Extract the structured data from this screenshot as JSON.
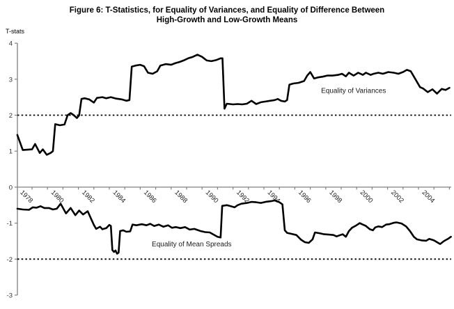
{
  "figure": {
    "title_line1": "Figure 6: T-Statistics, for Equality of Variances, and Equality of Difference Between",
    "title_line2": "High-Growth and Low-Growth Means",
    "y_axis_label": "T-stats"
  },
  "colors": {
    "series_line": "#000000",
    "axis_line": "#808080",
    "tick_text": "#333333",
    "threshold_line": "#000000",
    "annotation_text": "#1a1a1a"
  },
  "chart_data": {
    "type": "line",
    "title": "Figure 6: T-Statistics, for Equality of Variances, and Equality of Difference Between High-Growth and Low-Growth Means",
    "xlabel": "",
    "ylabel": "T-stats",
    "ylim": [
      -3,
      4
    ],
    "xlim": [
      1977.0,
      2005.3
    ],
    "grid": false,
    "legend_position": "inline-annotations",
    "y_ticks": [
      4,
      3,
      2,
      1,
      0,
      -1,
      -2,
      -3
    ],
    "x_ticks_labeled": [
      1978,
      1980,
      1982,
      1984,
      1986,
      1988,
      1990,
      1992,
      1994,
      1996,
      1998,
      2000,
      2002,
      2004
    ],
    "x_tick_step_years": 1,
    "reference_lines": [
      {
        "value": 2,
        "style": "dotted"
      },
      {
        "value": -2,
        "style": "dotted"
      }
    ],
    "annotations": [
      {
        "text": "Equality of Variances",
        "year": 1996.7,
        "value": 2.62
      },
      {
        "text": "Equality of Mean Spreads",
        "year": 1985.75,
        "value": -1.65
      }
    ],
    "series": [
      {
        "name": "Equality of Variances",
        "points": [
          [
            1977.05,
            1.45
          ],
          [
            1977.4,
            1.03
          ],
          [
            1977.7,
            1.04
          ],
          [
            1978.0,
            1.05
          ],
          [
            1978.2,
            1.2
          ],
          [
            1978.5,
            0.95
          ],
          [
            1978.7,
            1.05
          ],
          [
            1978.95,
            0.9
          ],
          [
            1979.2,
            0.95
          ],
          [
            1979.35,
            1.0
          ],
          [
            1979.5,
            1.75
          ],
          [
            1979.8,
            1.72
          ],
          [
            1980.1,
            1.74
          ],
          [
            1980.3,
            2.0
          ],
          [
            1980.5,
            2.06
          ],
          [
            1980.7,
            2.0
          ],
          [
            1980.9,
            1.92
          ],
          [
            1981.05,
            2.0
          ],
          [
            1981.2,
            2.45
          ],
          [
            1981.4,
            2.47
          ],
          [
            1981.7,
            2.44
          ],
          [
            1982.0,
            2.35
          ],
          [
            1982.2,
            2.48
          ],
          [
            1982.55,
            2.5
          ],
          [
            1982.8,
            2.47
          ],
          [
            1983.1,
            2.5
          ],
          [
            1983.45,
            2.46
          ],
          [
            1983.8,
            2.44
          ],
          [
            1984.1,
            2.4
          ],
          [
            1984.3,
            2.42
          ],
          [
            1984.45,
            3.35
          ],
          [
            1984.7,
            3.38
          ],
          [
            1985.0,
            3.4
          ],
          [
            1985.25,
            3.36
          ],
          [
            1985.5,
            3.18
          ],
          [
            1985.8,
            3.15
          ],
          [
            1986.1,
            3.22
          ],
          [
            1986.3,
            3.38
          ],
          [
            1986.65,
            3.42
          ],
          [
            1987.0,
            3.4
          ],
          [
            1987.3,
            3.45
          ],
          [
            1987.55,
            3.48
          ],
          [
            1987.8,
            3.52
          ],
          [
            1988.1,
            3.58
          ],
          [
            1988.4,
            3.62
          ],
          [
            1988.7,
            3.68
          ],
          [
            1989.0,
            3.62
          ],
          [
            1989.3,
            3.52
          ],
          [
            1989.6,
            3.5
          ],
          [
            1989.9,
            3.53
          ],
          [
            1990.2,
            3.58
          ],
          [
            1990.32,
            3.58
          ],
          [
            1990.45,
            2.18
          ],
          [
            1990.6,
            2.32
          ],
          [
            1991.0,
            2.3
          ],
          [
            1991.3,
            2.31
          ],
          [
            1991.6,
            2.3
          ],
          [
            1991.9,
            2.32
          ],
          [
            1992.2,
            2.4
          ],
          [
            1992.5,
            2.31
          ],
          [
            1992.8,
            2.36
          ],
          [
            1993.1,
            2.38
          ],
          [
            1993.4,
            2.4
          ],
          [
            1993.7,
            2.42
          ],
          [
            1993.9,
            2.45
          ],
          [
            1994.1,
            2.4
          ],
          [
            1994.35,
            2.38
          ],
          [
            1994.5,
            2.42
          ],
          [
            1994.65,
            2.85
          ],
          [
            1994.9,
            2.88
          ],
          [
            1995.25,
            2.9
          ],
          [
            1995.6,
            2.95
          ],
          [
            1995.8,
            3.1
          ],
          [
            1996.0,
            3.2
          ],
          [
            1996.25,
            3.02
          ],
          [
            1996.5,
            3.05
          ],
          [
            1996.8,
            3.07
          ],
          [
            1997.1,
            3.1
          ],
          [
            1997.45,
            3.1
          ],
          [
            1997.8,
            3.12
          ],
          [
            1998.05,
            3.15
          ],
          [
            1998.3,
            3.08
          ],
          [
            1998.5,
            3.18
          ],
          [
            1998.8,
            3.1
          ],
          [
            1999.1,
            3.18
          ],
          [
            1999.4,
            3.12
          ],
          [
            1999.6,
            3.18
          ],
          [
            1999.9,
            3.12
          ],
          [
            2000.1,
            3.15
          ],
          [
            2000.4,
            3.18
          ],
          [
            2000.7,
            3.15
          ],
          [
            2001.05,
            3.2
          ],
          [
            2001.4,
            3.18
          ],
          [
            2001.7,
            3.15
          ],
          [
            2002.0,
            3.2
          ],
          [
            2002.25,
            3.26
          ],
          [
            2002.5,
            3.22
          ],
          [
            2002.8,
            3.0
          ],
          [
            2003.1,
            2.78
          ],
          [
            2003.3,
            2.74
          ],
          [
            2003.6,
            2.64
          ],
          [
            2003.9,
            2.72
          ],
          [
            2004.2,
            2.6
          ],
          [
            2004.5,
            2.73
          ],
          [
            2004.75,
            2.7
          ],
          [
            2005.0,
            2.76
          ]
        ]
      },
      {
        "name": "Equality of Mean Spreads",
        "points": [
          [
            1977.05,
            -0.6
          ],
          [
            1977.4,
            -0.62
          ],
          [
            1977.8,
            -0.63
          ],
          [
            1978.05,
            -0.56
          ],
          [
            1978.3,
            -0.57
          ],
          [
            1978.55,
            -0.53
          ],
          [
            1978.8,
            -0.58
          ],
          [
            1979.1,
            -0.58
          ],
          [
            1979.35,
            -0.62
          ],
          [
            1979.6,
            -0.6
          ],
          [
            1979.85,
            -0.46
          ],
          [
            1980.2,
            -0.73
          ],
          [
            1980.5,
            -0.58
          ],
          [
            1980.8,
            -0.78
          ],
          [
            1981.05,
            -0.65
          ],
          [
            1981.3,
            -0.76
          ],
          [
            1981.6,
            -0.67
          ],
          [
            1981.8,
            -0.86
          ],
          [
            1982.0,
            -1.05
          ],
          [
            1982.15,
            -1.16
          ],
          [
            1982.4,
            -1.1
          ],
          [
            1982.55,
            -1.17
          ],
          [
            1982.8,
            -1.14
          ],
          [
            1983.0,
            -1.05
          ],
          [
            1983.1,
            -1.08
          ],
          [
            1983.2,
            -1.75
          ],
          [
            1983.3,
            -1.8
          ],
          [
            1983.4,
            -1.76
          ],
          [
            1983.5,
            -1.85
          ],
          [
            1983.6,
            -1.82
          ],
          [
            1983.7,
            -1.22
          ],
          [
            1983.9,
            -1.2
          ],
          [
            1984.1,
            -1.24
          ],
          [
            1984.35,
            -1.23
          ],
          [
            1984.5,
            -1.04
          ],
          [
            1984.75,
            -1.06
          ],
          [
            1985.1,
            -1.03
          ],
          [
            1985.4,
            -1.06
          ],
          [
            1985.65,
            -1.02
          ],
          [
            1985.9,
            -1.08
          ],
          [
            1986.2,
            -1.04
          ],
          [
            1986.5,
            -1.1
          ],
          [
            1986.8,
            -1.06
          ],
          [
            1987.05,
            -1.13
          ],
          [
            1987.3,
            -1.11
          ],
          [
            1987.6,
            -1.14
          ],
          [
            1987.9,
            -1.11
          ],
          [
            1988.2,
            -1.18
          ],
          [
            1988.5,
            -1.16
          ],
          [
            1988.9,
            -1.22
          ],
          [
            1989.2,
            -1.25
          ],
          [
            1989.5,
            -1.26
          ],
          [
            1989.75,
            -1.32
          ],
          [
            1990.0,
            -1.38
          ],
          [
            1990.2,
            -1.4
          ],
          [
            1990.3,
            -0.52
          ],
          [
            1990.6,
            -0.5
          ],
          [
            1990.85,
            -0.53
          ],
          [
            1991.1,
            -0.56
          ],
          [
            1991.3,
            -0.5
          ],
          [
            1991.55,
            -0.46
          ],
          [
            1991.9,
            -0.44
          ],
          [
            1992.2,
            -0.41
          ],
          [
            1992.5,
            -0.42
          ],
          [
            1992.8,
            -0.44
          ],
          [
            1993.1,
            -0.41
          ],
          [
            1993.45,
            -0.39
          ],
          [
            1993.7,
            -0.37
          ],
          [
            1994.0,
            -0.42
          ],
          [
            1994.2,
            -0.48
          ],
          [
            1994.35,
            -1.2
          ],
          [
            1994.5,
            -1.27
          ],
          [
            1994.8,
            -1.3
          ],
          [
            1995.1,
            -1.33
          ],
          [
            1995.4,
            -1.46
          ],
          [
            1995.65,
            -1.53
          ],
          [
            1995.9,
            -1.55
          ],
          [
            1996.15,
            -1.45
          ],
          [
            1996.3,
            -1.26
          ],
          [
            1996.6,
            -1.28
          ],
          [
            1996.9,
            -1.31
          ],
          [
            1997.2,
            -1.32
          ],
          [
            1997.5,
            -1.33
          ],
          [
            1997.7,
            -1.37
          ],
          [
            1997.95,
            -1.33
          ],
          [
            1998.1,
            -1.31
          ],
          [
            1998.3,
            -1.38
          ],
          [
            1998.5,
            -1.22
          ],
          [
            1998.7,
            -1.13
          ],
          [
            1998.95,
            -1.07
          ],
          [
            1999.2,
            -1.0
          ],
          [
            1999.35,
            -1.03
          ],
          [
            1999.6,
            -1.08
          ],
          [
            1999.85,
            -1.17
          ],
          [
            2000.05,
            -1.2
          ],
          [
            2000.2,
            -1.12
          ],
          [
            2000.4,
            -1.09
          ],
          [
            2000.65,
            -1.11
          ],
          [
            2000.9,
            -1.04
          ],
          [
            2001.1,
            -1.03
          ],
          [
            2001.4,
            -0.99
          ],
          [
            2001.6,
            -0.98
          ],
          [
            2001.9,
            -1.01
          ],
          [
            2002.2,
            -1.09
          ],
          [
            2002.45,
            -1.22
          ],
          [
            2002.7,
            -1.38
          ],
          [
            2002.9,
            -1.45
          ],
          [
            2003.2,
            -1.48
          ],
          [
            2003.5,
            -1.49
          ],
          [
            2003.7,
            -1.44
          ],
          [
            2004.0,
            -1.48
          ],
          [
            2004.2,
            -1.53
          ],
          [
            2004.4,
            -1.58
          ],
          [
            2004.65,
            -1.5
          ],
          [
            2004.9,
            -1.44
          ],
          [
            2005.1,
            -1.38
          ]
        ]
      }
    ]
  }
}
